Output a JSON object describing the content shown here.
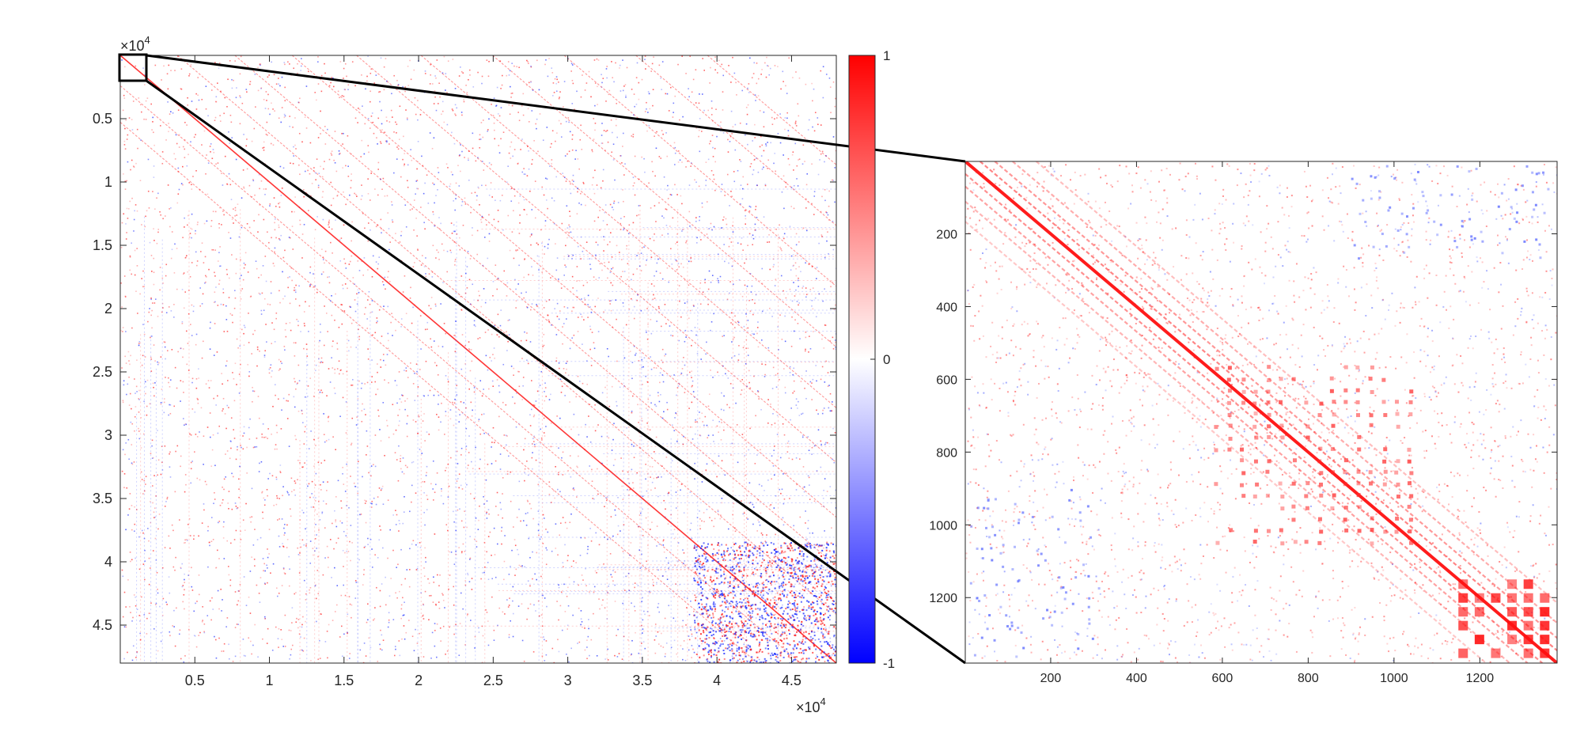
{
  "chart_data": [
    {
      "type": "heatmap",
      "title": "",
      "xlabel": "",
      "ylabel": "",
      "xlim": [
        1,
        48000
      ],
      "ylim": [
        1,
        48000
      ],
      "y_direction": "reversed",
      "x_ticks": [
        5000,
        10000,
        15000,
        20000,
        25000,
        30000,
        35000,
        40000,
        45000
      ],
      "x_tick_labels": [
        "0.5",
        "1",
        "1.5",
        "2",
        "2.5",
        "3",
        "3.5",
        "4",
        "4.5"
      ],
      "y_ticks": [
        5000,
        10000,
        15000,
        20000,
        25000,
        30000,
        35000,
        40000,
        45000
      ],
      "y_tick_labels": [
        "0.5",
        "1",
        "1.5",
        "2",
        "2.5",
        "3",
        "3.5",
        "4",
        "4.5"
      ],
      "x_exponent_label": "×10",
      "x_exponent": "4",
      "y_exponent_label": "×10",
      "y_exponent": "4",
      "colormap": "blue-white-red",
      "colors": {
        "min": "#0000ff",
        "mid": "#ffffff",
        "max": "#ff0000"
      },
      "grid": false,
      "description_values": {
        "main_diagonal": 1,
        "zoom_region_x": [
          1,
          1380
        ],
        "zoom_region_y": [
          1,
          1380
        ]
      }
    },
    {
      "type": "heatmap",
      "title": "",
      "xlabel": "",
      "ylabel": "",
      "xlim": [
        1,
        1380
      ],
      "ylim": [
        1,
        1380
      ],
      "y_direction": "reversed",
      "x_ticks": [
        200,
        400,
        600,
        800,
        1000,
        1200
      ],
      "x_tick_labels": [
        "200",
        "400",
        "600",
        "800",
        "1000",
        "1200"
      ],
      "y_ticks": [
        200,
        400,
        600,
        800,
        1000,
        1200
      ],
      "y_tick_labels": [
        "200",
        "400",
        "600",
        "800",
        "1000",
        "1200"
      ],
      "colormap": "blue-white-red",
      "grid": false,
      "description_values": {
        "main_diagonal": 1
      }
    }
  ],
  "colorbar": {
    "min": -1,
    "max": 1,
    "ticks": [
      -1,
      0,
      1
    ],
    "tick_labels": [
      "-1",
      "0",
      "1"
    ],
    "colors": {
      "low": "#0000ff",
      "mid": "#ffffff",
      "high": "#ff0000"
    }
  }
}
